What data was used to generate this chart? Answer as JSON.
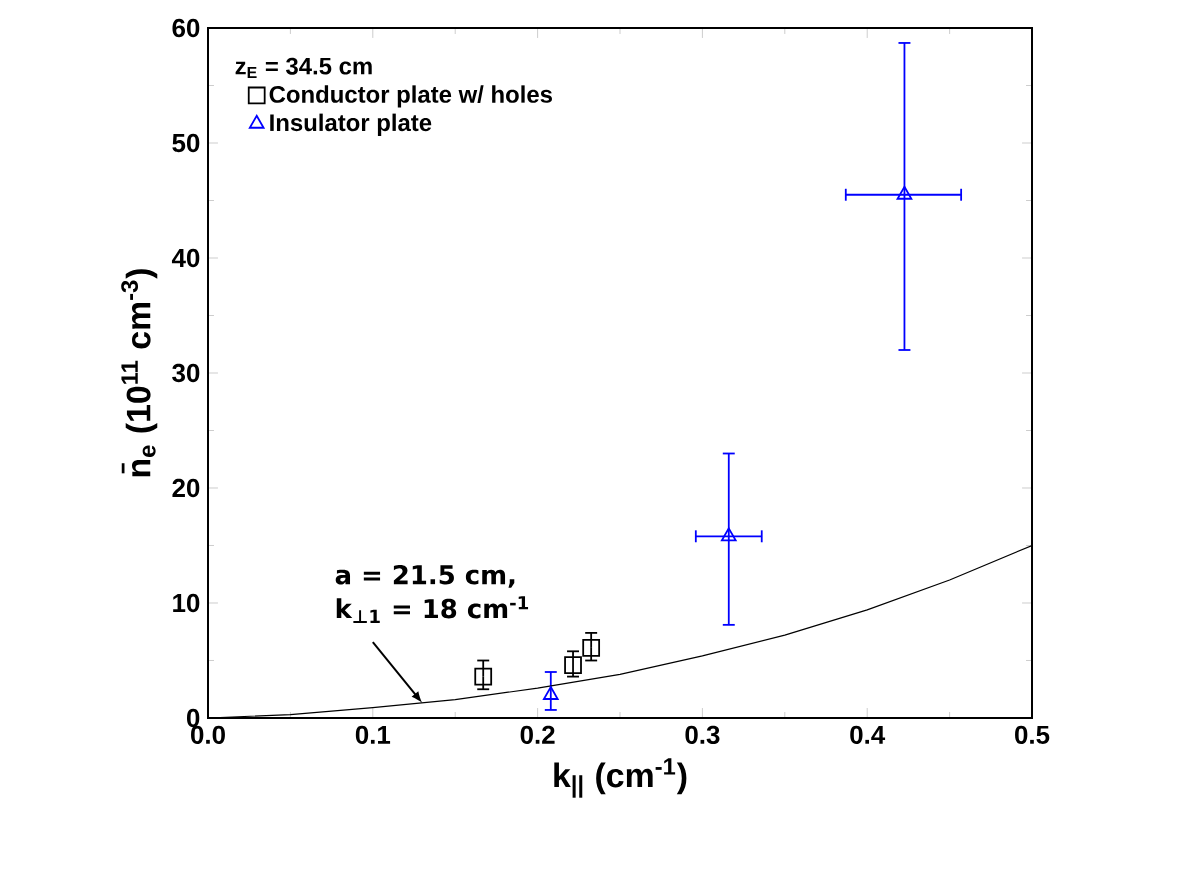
{
  "chart_data": {
    "type": "scatter",
    "xlabel": "k$_{||}$ (cm$^{-1}$)",
    "ylabel": "n̄$_{e}$ (10$^{11}$ cm$^{-3}$)",
    "legend_title": "z$_{E}$ = 34.5 cm",
    "xlim": [
      0,
      0.5
    ],
    "ylim": [
      0,
      60
    ],
    "xticks": [
      {
        "value": 0,
        "label": "0.0"
      },
      0.1,
      0.2,
      0.3,
      0.4,
      0.5
    ],
    "yticks": [
      0,
      10,
      20,
      30,
      40,
      50,
      60
    ],
    "legend": "top left",
    "grid": false,
    "annotations": [
      "a = 21.5 cm,",
      {
        "text": "k$_{⊥1}$ = 18 cm$^{-1}$",
        "x": 0.13,
        "y": 1.3
      }
    ],
    "series": [
      {
        "name": "Conductor plate w/ holes",
        "color": "#000000",
        "marker": "square",
        "x": [
          0.167,
          0.2215,
          0.2325
        ],
        "values": [
          3.6,
          4.6,
          6.1
        ],
        "errors": [
          [
            2.5,
            5.0
          ],
          [
            3.6,
            5.8
          ],
          [
            5.0,
            7.4
          ]
        ]
      },
      {
        "name": "Insulator plate",
        "color": "#0000ff",
        "marker": "triangle",
        "x": [
          0.208,
          0.316,
          0.4226
        ],
        "values": [
          2.0,
          15.8,
          45.5
        ],
        "errors": [
          [
            0.7,
            4.0
          ],
          [
            8.1,
            23.0
          ],
          [
            32.0,
            58.7
          ]
        ],
        "xerrors": [
          null,
          [
            0.296,
            0.336
          ],
          [
            0.387,
            0.457
          ]
        ]
      },
      {
        "type": "line",
        "color": "#000000",
        "marker": "none",
        "x": [
          0,
          0.05,
          0.1,
          0.15,
          0.2,
          0.25,
          0.3,
          0.35,
          0.4,
          0.45,
          0.5
        ],
        "values": [
          0,
          0.3,
          0.9,
          1.6,
          2.6,
          3.8,
          5.4,
          7.2,
          9.4,
          12,
          15
        ]
      }
    ]
  }
}
